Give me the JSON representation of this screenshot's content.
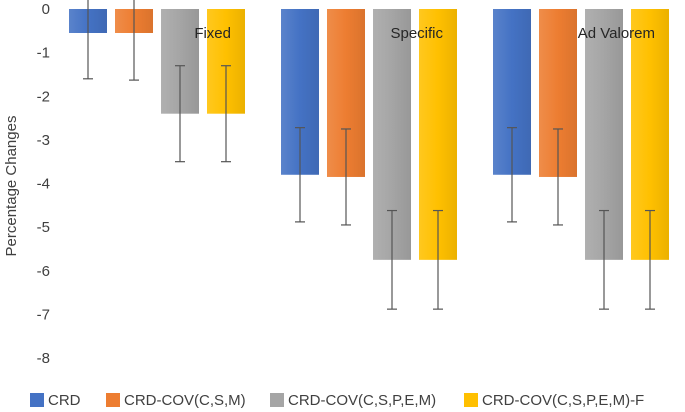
{
  "chart_data": {
    "type": "bar",
    "categories": [
      "Fixed",
      "Specific",
      "Ad Valorem"
    ],
    "series": [
      {
        "name": "CRD",
        "color": "#4472C4",
        "values": [
          -0.55,
          -3.8,
          -3.8
        ],
        "error": [
          1.05,
          1.08,
          1.08
        ]
      },
      {
        "name": "CRD-COV(C,S,M)",
        "color": "#ED7D31",
        "values": [
          -0.55,
          -3.85,
          -3.85
        ],
        "error": [
          1.08,
          1.1,
          1.1
        ]
      },
      {
        "name": "CRD-COV(C,S,P,E,M)",
        "color": "#A5A5A5",
        "values": [
          -2.4,
          -5.75,
          -5.75
        ],
        "error": [
          1.1,
          1.13,
          1.13
        ]
      },
      {
        "name": "CRD-COV(C,S,P,E,M)-F",
        "color": "#FFC000",
        "values": [
          -2.4,
          -5.75,
          -5.75
        ],
        "error": [
          1.1,
          1.13,
          1.13
        ]
      }
    ],
    "ylabel": "Percentage Changes",
    "xlabel": "",
    "title": "",
    "ylim": [
      -8,
      0
    ],
    "yticks": [
      "0",
      "-1",
      "-2",
      "-3",
      "-4",
      "-5",
      "-6",
      "-7",
      "-8"
    ],
    "grid": false,
    "legend_position": "bottom"
  }
}
